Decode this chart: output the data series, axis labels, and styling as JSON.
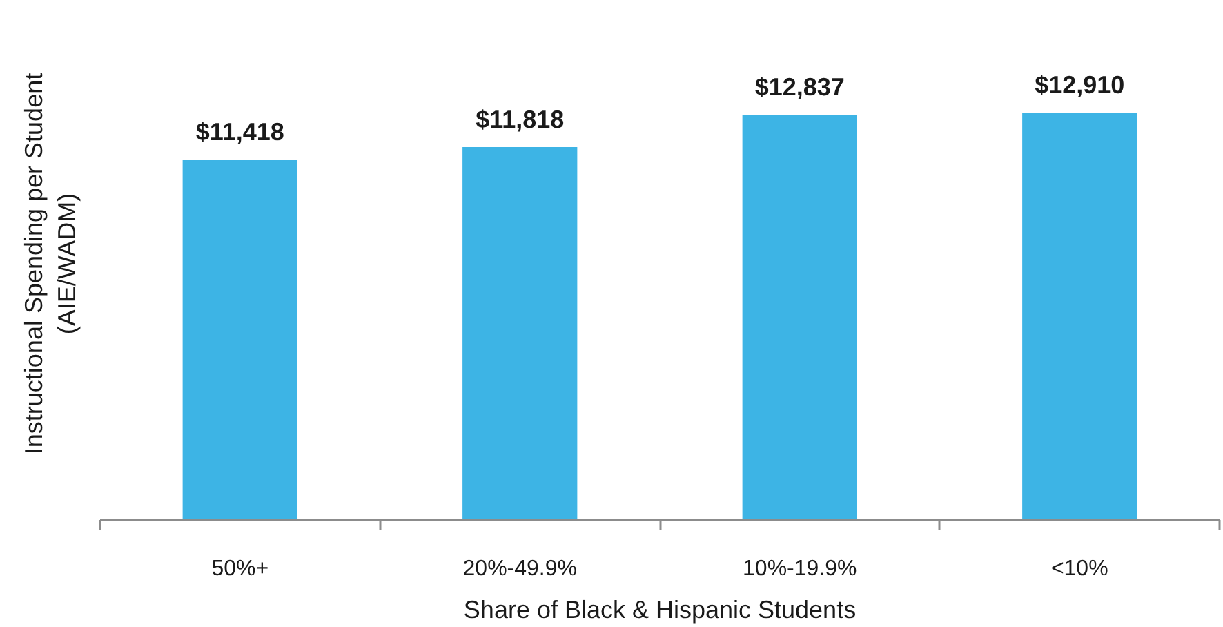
{
  "chart_data": {
    "type": "bar",
    "xlabel": "Share of Black & Hispanic Students",
    "ylabel": "Instructional Spending per Student\n(AIE/WADM)",
    "categories": [
      "50%+",
      "20%-49.9%",
      "10%-19.9%",
      "<10%"
    ],
    "values": [
      11418,
      11818,
      12837,
      12910
    ],
    "value_labels": [
      "$11,418",
      "$11,818",
      "$12,837",
      "$12,910"
    ],
    "color": "#3db4e5",
    "tick_labels": "x"
  }
}
